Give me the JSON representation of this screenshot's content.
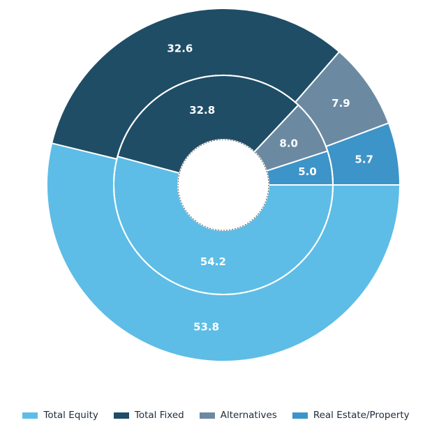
{
  "chart_data": {
    "type": "pie",
    "variant": "nested-donut",
    "categories": [
      "Total Equity",
      "Total Fixed",
      "Alternatives",
      "Real Estate/Property"
    ],
    "colors": [
      "#5dbde6",
      "#1f4d66",
      "#6b8aa2",
      "#3d94c8"
    ],
    "series": [
      {
        "ring": "inner",
        "values": [
          54.2,
          32.8,
          8.0,
          5.0
        ]
      },
      {
        "ring": "outer",
        "values": [
          53.8,
          32.6,
          7.9,
          5.7
        ]
      }
    ]
  },
  "legend": {
    "placement": "bottom",
    "items": [
      {
        "label": "Total Equity",
        "color": "#5dbde6"
      },
      {
        "label": "Total Fixed",
        "color": "#1f4d66"
      },
      {
        "label": "Alternatives",
        "color": "#6b8aa2"
      },
      {
        "label": "Real Estate/Property",
        "color": "#3d94c8"
      }
    ]
  }
}
